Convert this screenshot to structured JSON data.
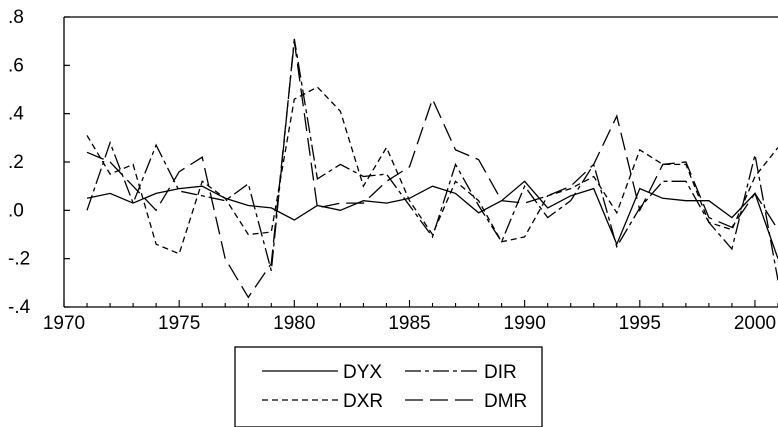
{
  "chart_data": {
    "type": "line",
    "title": "",
    "xlabel": "",
    "ylabel": "",
    "xlim": [
      1970,
      2001
    ],
    "ylim": [
      -0.4,
      0.8
    ],
    "x_ticks": [
      1970,
      1975,
      1980,
      1985,
      1990,
      1995,
      2000
    ],
    "x_tick_labels": [
      "1970",
      "1975",
      "1980",
      "1985",
      "1990",
      "1995",
      "2000"
    ],
    "y_ticks": [
      -0.4,
      -0.2,
      0.0,
      0.2,
      0.4,
      0.6,
      0.8
    ],
    "y_tick_labels": [
      "-.4",
      "-.2",
      ".0",
      ".2",
      ".4",
      ".6",
      ".8"
    ],
    "grid": false,
    "legend_position": "bottom",
    "x": [
      1971,
      1972,
      1973,
      1974,
      1975,
      1976,
      1977,
      1978,
      1979,
      1980,
      1981,
      1982,
      1983,
      1984,
      1985,
      1986,
      1987,
      1988,
      1989,
      1990,
      1991,
      1992,
      1993,
      1994,
      1995,
      1996,
      1997,
      1998,
      1999,
      2000,
      2001
    ],
    "series": [
      {
        "name": "DYX",
        "dash": "solid",
        "values": [
          0.05,
          0.07,
          0.03,
          0.07,
          0.09,
          0.1,
          0.05,
          0.02,
          0.01,
          -0.04,
          0.02,
          0.0,
          0.04,
          0.03,
          0.05,
          0.1,
          0.07,
          -0.01,
          0.04,
          0.12,
          0.01,
          0.06,
          0.09,
          -0.14,
          0.09,
          0.05,
          0.04,
          0.04,
          -0.03,
          0.07,
          -0.2
        ]
      },
      {
        "name": "DXR",
        "dash": "short",
        "values": [
          0.31,
          0.15,
          0.19,
          -0.14,
          -0.18,
          0.12,
          0.05,
          -0.1,
          -0.09,
          0.46,
          0.51,
          0.41,
          0.1,
          0.26,
          0.04,
          -0.1,
          0.12,
          0.04,
          -0.13,
          -0.11,
          0.06,
          0.09,
          0.14,
          -0.01,
          0.25,
          0.19,
          0.19,
          -0.05,
          -0.08,
          0.14,
          0.26
        ]
      },
      {
        "name": "DIR",
        "dash": "dashdot",
        "values": [
          0.0,
          0.28,
          0.03,
          0.27,
          0.08,
          0.06,
          0.04,
          0.11,
          -0.25,
          0.71,
          0.13,
          0.19,
          0.14,
          0.15,
          0.02,
          -0.11,
          0.19,
          0.02,
          -0.13,
          0.1,
          -0.03,
          0.04,
          0.19,
          -0.15,
          0.01,
          0.12,
          0.12,
          -0.05,
          -0.16,
          0.23,
          -0.29
        ]
      },
      {
        "name": "DMR",
        "dash": "long",
        "values": [
          0.24,
          0.2,
          0.1,
          0.0,
          0.16,
          0.22,
          -0.2,
          -0.36,
          -0.22,
          0.7,
          0.01,
          0.03,
          0.03,
          0.12,
          0.18,
          0.46,
          0.25,
          0.21,
          0.04,
          0.03,
          0.06,
          0.1,
          0.19,
          0.39,
          0.0,
          0.19,
          0.2,
          -0.03,
          -0.07,
          0.07,
          -0.08
        ]
      }
    ]
  }
}
